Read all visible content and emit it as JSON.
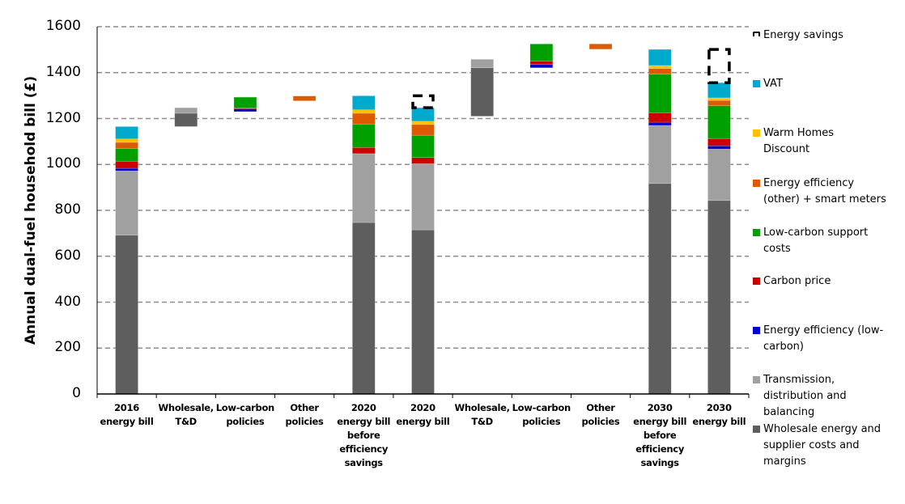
{
  "chart_data": {
    "type": "bar",
    "subtype": "stacked-waterfall",
    "title": "",
    "xlabel": "",
    "ylabel": "Annual dual-fuel household bill (£)",
    "ylim": [
      0,
      1600
    ],
    "yticks": [
      0,
      200,
      400,
      600,
      800,
      1000,
      1200,
      1400,
      1600
    ],
    "grid": "horizontal-dashed",
    "legend_position": "right",
    "series": [
      {
        "key": "savings",
        "name": "Energy savings",
        "color": "#000000"
      },
      {
        "key": "vat",
        "name": "VAT",
        "color": "#00AACC"
      },
      {
        "key": "whd",
        "name": "Warm Homes\nDiscount",
        "color": "#FFC000"
      },
      {
        "key": "ee_other",
        "name": "Energy efficiency\n(other) + smart meters",
        "color": "#DD5A00"
      },
      {
        "key": "lowcarbon",
        "name": "Low-carbon support\ncosts",
        "color": "#00A000"
      },
      {
        "key": "carbon",
        "name": "Carbon price",
        "color": "#CC0000"
      },
      {
        "key": "ee_low",
        "name": "Energy efficiency (low-\ncarbon)",
        "color": "#0000CC"
      },
      {
        "key": "td",
        "name": "Transmission,\ndistribution and\nbalancing",
        "color": "#A0A0A0"
      },
      {
        "key": "wholesale",
        "name": "Wholesale energy and\nsupplier costs and\nmargins",
        "color": "#5E5E5E"
      }
    ],
    "categories": [
      {
        "label": "2016\nenergy bill",
        "segments": [
          {
            "series": "wholesale",
            "from": 0,
            "to": 692
          },
          {
            "series": "td",
            "from": 692,
            "to": 972
          },
          {
            "series": "ee_low",
            "from": 972,
            "to": 983
          },
          {
            "series": "carbon",
            "from": 983,
            "to": 1014
          },
          {
            "series": "lowcarbon",
            "from": 1014,
            "to": 1070
          },
          {
            "series": "ee_other",
            "from": 1070,
            "to": 1096
          },
          {
            "series": "whd",
            "from": 1096,
            "to": 1111
          },
          {
            "series": "vat",
            "from": 1111,
            "to": 1165
          }
        ]
      },
      {
        "label": "Wholesale,\nT&D",
        "segments": [
          {
            "series": "wholesale",
            "from": 1165,
            "to": 1223
          },
          {
            "series": "td",
            "from": 1223,
            "to": 1247
          }
        ]
      },
      {
        "label": "Low-carbon\npolicies",
        "segments": [
          {
            "series": "ee_low",
            "from": 1230,
            "to": 1242
          },
          {
            "series": "carbon",
            "from": 1242,
            "to": 1245
          },
          {
            "series": "lowcarbon",
            "from": 1245,
            "to": 1293
          }
        ]
      },
      {
        "label": "Other\npolicies",
        "segments": [
          {
            "series": "ee_other",
            "from": 1277,
            "to": 1298
          }
        ]
      },
      {
        "label": "2020\nenergy bill\nbefore\nefficiency\nsavings",
        "segments": [
          {
            "series": "wholesale",
            "from": 0,
            "to": 747
          },
          {
            "series": "td",
            "from": 747,
            "to": 1047
          },
          {
            "series": "carbon",
            "from": 1047,
            "to": 1074
          },
          {
            "series": "lowcarbon",
            "from": 1074,
            "to": 1176
          },
          {
            "series": "ee_other",
            "from": 1176,
            "to": 1223
          },
          {
            "series": "whd",
            "from": 1223,
            "to": 1238
          },
          {
            "series": "vat",
            "from": 1238,
            "to": 1299
          }
        ]
      },
      {
        "label": "2020\nenergy bill",
        "segments": [
          {
            "series": "wholesale",
            "from": 0,
            "to": 715
          },
          {
            "series": "td",
            "from": 715,
            "to": 1003
          },
          {
            "series": "carbon",
            "from": 1003,
            "to": 1030
          },
          {
            "series": "lowcarbon",
            "from": 1030,
            "to": 1127
          },
          {
            "series": "ee_other",
            "from": 1127,
            "to": 1174
          },
          {
            "series": "whd",
            "from": 1174,
            "to": 1188
          },
          {
            "series": "vat",
            "from": 1188,
            "to": 1247
          },
          {
            "series": "savings",
            "from": 1247,
            "to": 1299
          }
        ]
      },
      {
        "label": "Wholesale,\nT&D",
        "segments": [
          {
            "series": "wholesale",
            "from": 1210,
            "to": 1421
          },
          {
            "series": "td",
            "from": 1421,
            "to": 1458
          }
        ]
      },
      {
        "label": "Low-carbon\npolicies",
        "segments": [
          {
            "series": "ee_low",
            "from": 1421,
            "to": 1435
          },
          {
            "series": "carbon",
            "from": 1435,
            "to": 1450
          },
          {
            "series": "lowcarbon",
            "from": 1450,
            "to": 1525
          }
        ]
      },
      {
        "label": "Other\npolicies",
        "segments": [
          {
            "series": "ee_other",
            "from": 1502,
            "to": 1525
          }
        ]
      },
      {
        "label": "2030\nenergy bill\nbefore\nefficiency\nsavings",
        "segments": [
          {
            "series": "wholesale",
            "from": 0,
            "to": 917
          },
          {
            "series": "td",
            "from": 917,
            "to": 1170
          },
          {
            "series": "ee_low",
            "from": 1170,
            "to": 1184
          },
          {
            "series": "carbon",
            "from": 1184,
            "to": 1225
          },
          {
            "series": "lowcarbon",
            "from": 1225,
            "to": 1393
          },
          {
            "series": "ee_other",
            "from": 1393,
            "to": 1418
          },
          {
            "series": "whd",
            "from": 1418,
            "to": 1431
          },
          {
            "series": "vat",
            "from": 1431,
            "to": 1501
          }
        ]
      },
      {
        "label": "2030\nenergy bill",
        "segments": [
          {
            "series": "wholesale",
            "from": 0,
            "to": 843
          },
          {
            "series": "td",
            "from": 843,
            "to": 1067
          },
          {
            "series": "ee_low",
            "from": 1067,
            "to": 1081
          },
          {
            "series": "carbon",
            "from": 1081,
            "to": 1113
          },
          {
            "series": "lowcarbon",
            "from": 1113,
            "to": 1256
          },
          {
            "series": "ee_other",
            "from": 1256,
            "to": 1279
          },
          {
            "series": "whd",
            "from": 1279,
            "to": 1290
          },
          {
            "series": "vat",
            "from": 1290,
            "to": 1356
          },
          {
            "series": "savings",
            "from": 1356,
            "to": 1501
          }
        ]
      }
    ]
  }
}
